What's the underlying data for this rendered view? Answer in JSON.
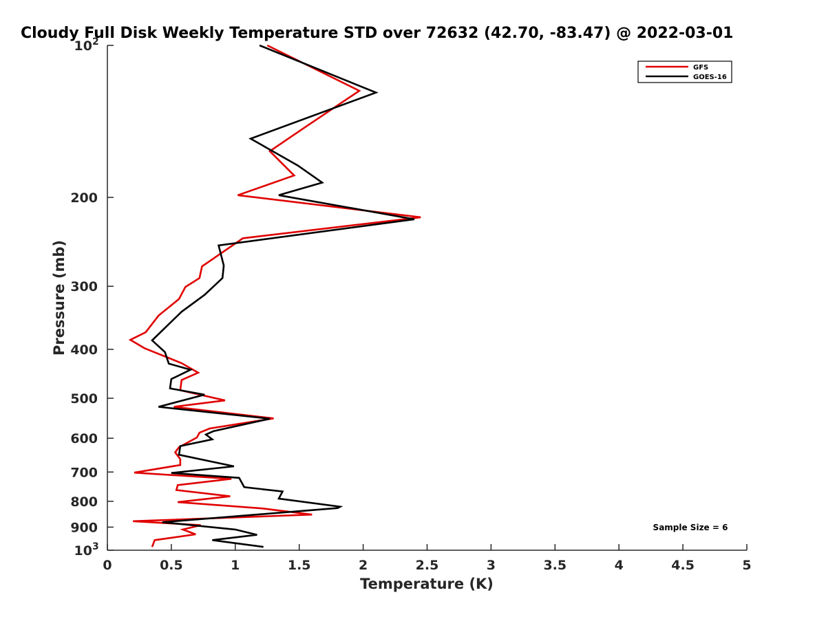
{
  "chart_data": {
    "type": "line",
    "title": "Cloudy Full Disk Weekly Temperature STD over 72632 (42.70, -83.47) @ 2022-03-01",
    "xlabel": "Temperature (K)",
    "ylabel": "Pressure (mb)",
    "xlim": [
      0,
      5
    ],
    "ylim": [
      100,
      1000
    ],
    "y_scale": "log",
    "y_reversed": true,
    "x_ticks": [
      0,
      0.5,
      1,
      1.5,
      2,
      2.5,
      3,
      3.5,
      4,
      4.5,
      5
    ],
    "x_tick_labels": [
      "0",
      "0.5",
      "1",
      "1.5",
      "2",
      "2.5",
      "3",
      "3.5",
      "4",
      "4.5",
      "5"
    ],
    "y_ticks": [
      100,
      200,
      300,
      400,
      500,
      600,
      700,
      800,
      900,
      1000
    ],
    "y_tick_labels": [
      {
        "base": "10",
        "exp": "2"
      },
      {
        "text": "200"
      },
      {
        "text": "300"
      },
      {
        "text": "400"
      },
      {
        "text": "500"
      },
      {
        "text": "600"
      },
      {
        "text": "700"
      },
      {
        "text": "800"
      },
      {
        "text": "900"
      },
      {
        "base": "10",
        "exp": "3"
      }
    ],
    "grid": false,
    "legend_position": "top-right",
    "series": [
      {
        "name": "GFS",
        "color": "#e00000",
        "points": [
          [
            1.25,
            100
          ],
          [
            1.97,
            123
          ],
          [
            1.55,
            145
          ],
          [
            1.27,
            162
          ],
          [
            1.46,
            181
          ],
          [
            1.02,
            198
          ],
          [
            2.45,
            219
          ],
          [
            1.06,
            241
          ],
          [
            0.74,
            274
          ],
          [
            0.72,
            289
          ],
          [
            0.61,
            301
          ],
          [
            0.56,
            318
          ],
          [
            0.4,
            343
          ],
          [
            0.3,
            370
          ],
          [
            0.18,
            383
          ],
          [
            0.29,
            398
          ],
          [
            0.58,
            426
          ],
          [
            0.71,
            445
          ],
          [
            0.58,
            460
          ],
          [
            0.57,
            482
          ],
          [
            0.92,
            505
          ],
          [
            0.52,
            520
          ],
          [
            1.3,
            548
          ],
          [
            0.8,
            574
          ],
          [
            0.72,
            585
          ],
          [
            0.7,
            598
          ],
          [
            0.56,
            625
          ],
          [
            0.53,
            640
          ],
          [
            0.57,
            660
          ],
          [
            0.57,
            678
          ],
          [
            0.21,
            702
          ],
          [
            0.97,
            722
          ],
          [
            0.55,
            743
          ],
          [
            0.54,
            760
          ],
          [
            0.96,
            782
          ],
          [
            0.55,
            803
          ],
          [
            1.22,
            827
          ],
          [
            1.6,
            850
          ],
          [
            0.2,
            876
          ],
          [
            0.73,
            892
          ],
          [
            0.59,
            910
          ],
          [
            0.69,
            930
          ],
          [
            0.37,
            955
          ],
          [
            0.35,
            985
          ]
        ]
      },
      {
        "name": "GOES-16",
        "color": "#000000",
        "points": [
          [
            1.19,
            100
          ],
          [
            2.1,
            124
          ],
          [
            1.12,
            153
          ],
          [
            1.49,
            173
          ],
          [
            1.68,
            187
          ],
          [
            1.34,
            198
          ],
          [
            2.4,
            221
          ],
          [
            0.87,
            249
          ],
          [
            0.91,
            273
          ],
          [
            0.9,
            289
          ],
          [
            0.76,
            312
          ],
          [
            0.58,
            337
          ],
          [
            0.35,
            384
          ],
          [
            0.45,
            405
          ],
          [
            0.48,
            427
          ],
          [
            0.65,
            439
          ],
          [
            0.5,
            458
          ],
          [
            0.49,
            478
          ],
          [
            0.76,
            492
          ],
          [
            0.4,
            520
          ],
          [
            1.27,
            549
          ],
          [
            0.83,
            581
          ],
          [
            0.77,
            590
          ],
          [
            0.82,
            603
          ],
          [
            0.57,
            622
          ],
          [
            0.56,
            647
          ],
          [
            0.99,
            682
          ],
          [
            0.5,
            703
          ],
          [
            1.03,
            719
          ],
          [
            1.07,
            750
          ],
          [
            1.37,
            765
          ],
          [
            1.34,
            790
          ],
          [
            1.82,
            820
          ],
          [
            1.8,
            825
          ],
          [
            0.43,
            880
          ],
          [
            1.0,
            910
          ],
          [
            1.17,
            932
          ],
          [
            0.82,
            955
          ],
          [
            1.22,
            985
          ]
        ]
      }
    ],
    "annotation": "Sample Size = 6"
  }
}
